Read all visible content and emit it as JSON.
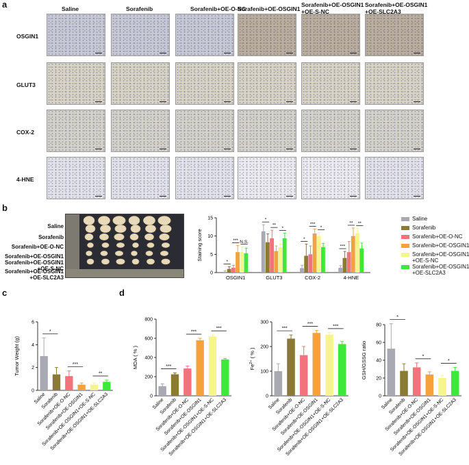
{
  "panels": {
    "a": "a",
    "b": "b",
    "c": "c",
    "d": "d"
  },
  "colors": {
    "Saline": "#a9a9b4",
    "Sorafenib": "#8b7a34",
    "Sorafenib+OE-O-NC": "#f2737b",
    "Sorafenib+OE-OSGIN1": "#f5a23c",
    "Sorafenib+OE-OSGIN1+OE-S-NC": "#f5f58c",
    "Sorafenib+OE-OSGIN1+OE-SLC2A3": "#3ee83a"
  },
  "panel_a": {
    "columns": [
      "Saline",
      "Sorafenib",
      "Sorafenib+OE-O-NC",
      "Sorafenib+OE-OSGIN1",
      "Sorafenib+OE-OSGIN1\n+OE-S-NC",
      "Sorafenib+OE-OSGIN1\n+OE-SLC2A3"
    ],
    "rows": [
      "OSGIN1",
      "GLUT3",
      "COX-2",
      "4-HNE"
    ]
  },
  "panel_b_photo": {
    "labels": [
      "Saline",
      "Sorafenib",
      "Sorafenib+OE-O-NC",
      "Sorafenib+OE-OSGIN1",
      "Sorafenib+OE-OSGIN1\n+OE-S-NC",
      "Sorafenib+OE-OSGIN1\n+OE-SLC2A3"
    ]
  },
  "legend": [
    "Saline",
    "Sorafenib",
    "Sorafenib+OE-O-NC",
    "Sorafenib+OE-OSGIN1",
    "Sorafenib+OE-OSGIN1\n+OE-S-NC",
    "Sorafenib+OE-OSGIN1\n+OE-SLC2A3"
  ],
  "chart_data": [
    {
      "id": "staining",
      "type": "bar",
      "ylabel": "Staining score",
      "ylim": [
        0,
        15
      ],
      "yticks": [
        0,
        5,
        10,
        15
      ],
      "categories": [
        "OSGIN1",
        "GLUT3",
        "COX-2",
        "4-HNE"
      ],
      "series": [
        {
          "name": "Saline",
          "values": [
            0.2,
            11.3,
            1.2,
            1.3
          ],
          "err": [
            0.3,
            1.8,
            0.8,
            0.6
          ]
        },
        {
          "name": "Sorafenib",
          "values": [
            1.0,
            8.3,
            4.6,
            4.0
          ],
          "err": [
            0.6,
            2.3,
            3.2,
            1.8
          ]
        },
        {
          "name": "Sorafenib+OE-O-NC",
          "values": [
            1.3,
            9.4,
            5.0,
            5.6
          ],
          "err": [
            0.7,
            2.2,
            2.3,
            2.9
          ]
        },
        {
          "name": "Sorafenib+OE-OSGIN1",
          "values": [
            5.6,
            5.9,
            10.7,
            10.0
          ],
          "err": [
            1.8,
            1.4,
            1.2,
            2.2
          ]
        },
        {
          "name": "Sorafenib+OE-OSGIN1\n+OE-S-NC",
          "values": [
            5.6,
            6.9,
            10.0,
            10.8
          ],
          "err": [
            1.4,
            0.9,
            1.0,
            1.3
          ]
        },
        {
          "name": "Sorafenib+OE-OSGIN1\n+OE-SLC2A3",
          "values": [
            5.3,
            9.4,
            7.0,
            6.6
          ],
          "err": [
            1.4,
            1.4,
            1.0,
            1.5
          ]
        }
      ],
      "sig": [
        {
          "cat": 0,
          "from": 0,
          "to": 1,
          "text": "*"
        },
        {
          "cat": 0,
          "from": 2,
          "to": 3,
          "text": "***"
        },
        {
          "cat": 0,
          "from": 4,
          "to": 5,
          "text": "N.S."
        },
        {
          "cat": 1,
          "from": 0,
          "to": 1,
          "text": "*"
        },
        {
          "cat": 1,
          "from": 2,
          "to": 3,
          "text": "**"
        },
        {
          "cat": 1,
          "from": 4,
          "to": 5,
          "text": "*"
        },
        {
          "cat": 2,
          "from": 0,
          "to": 1,
          "text": "*"
        },
        {
          "cat": 2,
          "from": 2,
          "to": 3,
          "text": "***"
        },
        {
          "cat": 2,
          "from": 4,
          "to": 5,
          "text": "*"
        },
        {
          "cat": 3,
          "from": 0,
          "to": 1,
          "text": "***"
        },
        {
          "cat": 3,
          "from": 2,
          "to": 3,
          "text": "**"
        },
        {
          "cat": 3,
          "from": 4,
          "to": 5,
          "text": "**"
        }
      ]
    },
    {
      "id": "tumor",
      "type": "bar",
      "ylabel": "Tumor Weight (g)",
      "ylim": [
        0,
        6
      ],
      "yticks": [
        0,
        2,
        4,
        6
      ],
      "categories": [
        "Saline",
        "Sorafenib",
        "Sorafenib+OE-O-NC",
        "Sorafenib+OE-OSGIN1",
        "Sorafenib+OE-OSGIN1+OE-S-NC",
        "Sorafenib+OE-OSGIN1+OE-SLC2A3"
      ],
      "values": [
        3.0,
        1.4,
        1.25,
        0.5,
        0.5,
        0.75
      ],
      "err": [
        1.6,
        0.6,
        0.45,
        0.15,
        0.15,
        0.15
      ],
      "sig": [
        {
          "from": 0,
          "to": 1,
          "text": "*"
        },
        {
          "from": 2,
          "to": 3,
          "text": "***"
        },
        {
          "from": 4,
          "to": 5,
          "text": "**"
        }
      ]
    },
    {
      "id": "mda",
      "type": "bar",
      "ylabel": "MDA ( % )",
      "ylim": [
        0,
        800
      ],
      "yticks": [
        0,
        200,
        400,
        600,
        800
      ],
      "categories": [
        "Saline",
        "Sorafenib",
        "Sorafenib+OE-O-NC",
        "Sorafenib+OE-OSGIN1",
        "Sorafenib+OE-OSGIN1+OE-S-NC",
        "Sorafenib+OE-OSGIN1+OE-SLC2A3"
      ],
      "values": [
        100,
        225,
        285,
        580,
        620,
        380
      ],
      "err": [
        25,
        15,
        25,
        20,
        15,
        10
      ],
      "sig": [
        {
          "from": 0,
          "to": 1,
          "text": "***"
        },
        {
          "from": 2,
          "to": 3,
          "text": "***"
        },
        {
          "from": 4,
          "to": 5,
          "text": "***"
        }
      ]
    },
    {
      "id": "fe",
      "type": "bar",
      "ylabel": "Fe2+ ( % )",
      "ylim": [
        0,
        300
      ],
      "yticks": [
        0,
        100,
        200,
        300
      ],
      "categories": [
        "Saline",
        "Sorafenib",
        "Sorafenib+OE-O-NC",
        "Sorafenib+OE-OSGIN1",
        "Sorafenib+OE-OSGIN1+OE-S-NC",
        "Sorafenib+OE-OSGIN1+OE-SLC2A3"
      ],
      "values": [
        100,
        232,
        165,
        255,
        248,
        210
      ],
      "err": [
        30,
        15,
        35,
        10,
        8,
        10
      ],
      "sig": [
        {
          "from": 0,
          "to": 1,
          "text": "***"
        },
        {
          "from": 2,
          "to": 3,
          "text": "***"
        },
        {
          "from": 4,
          "to": 5,
          "text": "***"
        }
      ]
    },
    {
      "id": "gsh",
      "type": "bar",
      "ylabel": "GSH/GSSG ratio",
      "ylim": [
        0,
        80
      ],
      "yticks": [
        0,
        20,
        40,
        60,
        80
      ],
      "categories": [
        "Saline",
        "Sorafenib",
        "Sorafenib+OE-O-NC",
        "Sorafenib+OE-OSGIN1",
        "Sorafenib+OE-OSGIN1+OE-S-NC",
        "Sorafenib+OE-OSGIN1+OE-SLC2A3"
      ],
      "values": [
        53,
        28,
        32,
        24,
        20,
        28
      ],
      "err": [
        28,
        8,
        5,
        3,
        3,
        4
      ],
      "sig": [
        {
          "from": 0,
          "to": 1,
          "text": "*"
        },
        {
          "from": 2,
          "to": 3,
          "text": "*"
        },
        {
          "from": 4,
          "to": 5,
          "text": "*"
        }
      ]
    }
  ]
}
